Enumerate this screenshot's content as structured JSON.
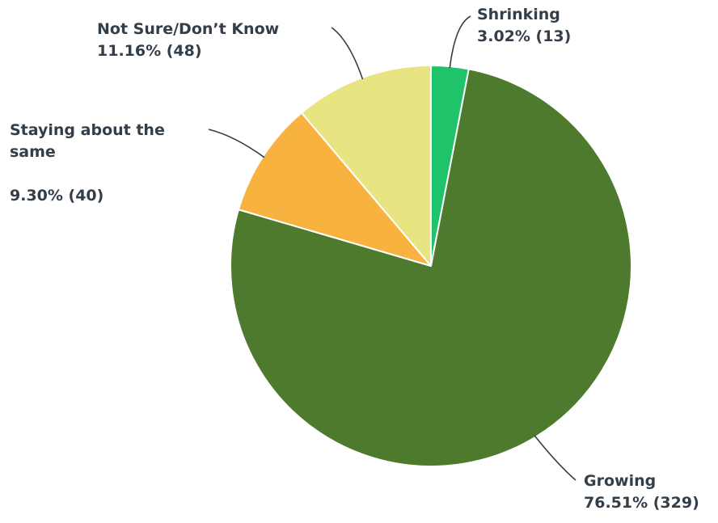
{
  "chart_data": {
    "type": "pie",
    "title": "",
    "slices": [
      {
        "name": "Shrinking",
        "percent": 3.02,
        "count": 13,
        "label": "3.02% (13)",
        "color": "#1fc46a"
      },
      {
        "name": "Growing",
        "percent": 76.51,
        "count": 329,
        "label": "76.51% (329)",
        "color": "#4d7a2c"
      },
      {
        "name": "Staying about the same",
        "percent": 9.3,
        "count": 40,
        "label": "9.30% (40)",
        "color": "#f8b240"
      },
      {
        "name": "Not Sure/Don’t Know",
        "percent": 11.16,
        "count": 48,
        "label": "11.16% (48)",
        "color": "#e9e482"
      }
    ],
    "start": "12 o'clock",
    "direction": "clockwise"
  }
}
